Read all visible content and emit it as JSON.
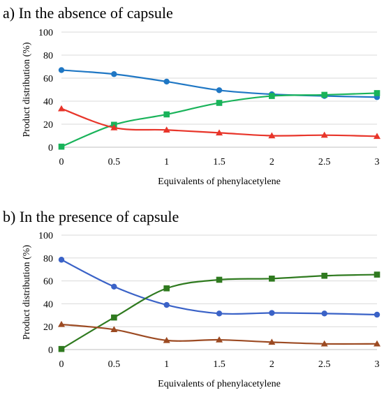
{
  "chart_data": [
    {
      "type": "line",
      "title": "a) In the absence of capsule",
      "xlabel": "Equivalents of phenylacetylene",
      "ylabel": "Product distribution (%)",
      "x": [
        0,
        0.5,
        1,
        1.5,
        2,
        2.5,
        3
      ],
      "x_tick_labels": [
        "0",
        "0.5",
        "1",
        "1.5",
        "2",
        "2.5",
        "3"
      ],
      "y_ticks": [
        0,
        20,
        40,
        60,
        80,
        100
      ],
      "y_tick_labels": [
        "0",
        "20",
        "40",
        "60",
        "80",
        "100"
      ],
      "ylim": [
        0,
        100
      ],
      "grid": "horizontal",
      "legend": "none",
      "series": [
        {
          "color": "#1f77c4",
          "marker": "circle",
          "values": [
            67,
            63.5,
            57,
            49.5,
            46,
            44.5,
            43.5
          ]
        },
        {
          "color": "#19b35a",
          "marker": "square",
          "values": [
            0.5,
            19.5,
            28.5,
            38.5,
            44.5,
            45.5,
            47
          ]
        },
        {
          "color": "#e8352a",
          "marker": "triangle",
          "values": [
            33.5,
            17,
            15,
            12.5,
            10,
            10.5,
            9.5
          ]
        }
      ]
    },
    {
      "type": "line",
      "title": "b) In the presence of capsule",
      "xlabel": "Equivalents of phenylacetylene",
      "ylabel": "Product distribution (%)",
      "x": [
        0,
        0.5,
        1,
        1.5,
        2,
        2.5,
        3
      ],
      "x_tick_labels": [
        "0",
        "0.5",
        "1",
        "1.5",
        "2",
        "2.5",
        "3"
      ],
      "y_ticks": [
        0,
        20,
        40,
        60,
        80,
        100
      ],
      "y_tick_labels": [
        "0",
        "20",
        "40",
        "60",
        "80",
        "100"
      ],
      "ylim": [
        0,
        100
      ],
      "grid": "horizontal",
      "legend": "none",
      "series": [
        {
          "color": "#3a62c7",
          "marker": "circle",
          "values": [
            78.5,
            55,
            39,
            31.5,
            32,
            31.5,
            30.5
          ]
        },
        {
          "color": "#2f7a1f",
          "marker": "square",
          "values": [
            0.5,
            28,
            53.5,
            61,
            62,
            64.5,
            65.5
          ]
        },
        {
          "color": "#9c4a22",
          "marker": "triangle",
          "values": [
            22,
            17.5,
            8,
            8.5,
            6.5,
            5,
            5
          ]
        }
      ]
    }
  ]
}
